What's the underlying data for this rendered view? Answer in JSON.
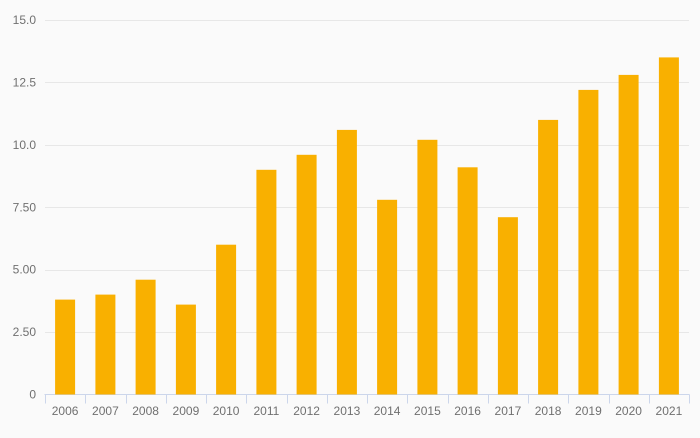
{
  "chart_data": {
    "type": "bar",
    "title": "",
    "xlabel": "",
    "ylabel": "",
    "categories": [
      "2006",
      "2007",
      "2008",
      "2009",
      "2010",
      "2011",
      "2012",
      "2013",
      "2014",
      "2015",
      "2016",
      "2017",
      "2018",
      "2019",
      "2020",
      "2021"
    ],
    "values": [
      3.8,
      4.0,
      4.6,
      3.6,
      6.0,
      9.0,
      9.6,
      10.6,
      7.8,
      10.2,
      9.1,
      7.1,
      11.0,
      12.2,
      12.8,
      13.5
    ],
    "ylim": [
      0,
      15
    ],
    "y_ticks": [
      {
        "value": 0,
        "label": "0"
      },
      {
        "value": 2.5,
        "label": "2.50"
      },
      {
        "value": 5,
        "label": "5.00"
      },
      {
        "value": 7.5,
        "label": "7.50"
      },
      {
        "value": 10,
        "label": "10.0"
      },
      {
        "value": 12.5,
        "label": "12.5"
      },
      {
        "value": 15,
        "label": "15.0"
      }
    ],
    "grid": true,
    "legend": "none",
    "colors": {
      "bar": "#f9b000",
      "grid_line": "#e7e7e7",
      "axis_line": "#ccd6eb",
      "tick_label": "#707070",
      "background": "#fafafa"
    }
  }
}
